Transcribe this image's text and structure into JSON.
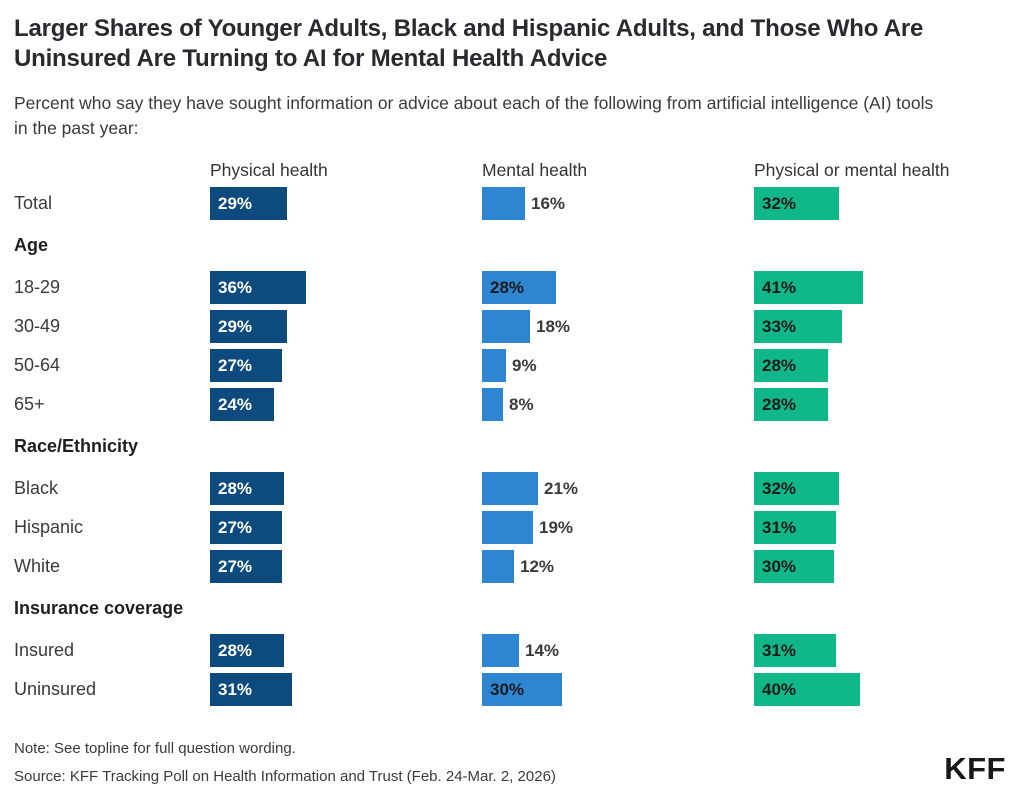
{
  "title": "Larger Shares of Younger Adults, Black and Hispanic Adults, and Those Who Are Uninsured Are Turning to AI for Mental Health Advice",
  "subtitle": "Percent who say they have sought information or advice about each of the following from artificial intelligence (AI) tools in the past year:",
  "columns": [
    "Physical health",
    "Mental health",
    "Physical or mental health"
  ],
  "colors": {
    "physical": "#0d4b7e",
    "mental": "#2e86d3",
    "combined": "#10b789",
    "label_on_dark": "#ffffff",
    "label_on_light": "#1a1a1a",
    "label_outside": "#3a3a3a"
  },
  "rows": [
    {
      "type": "bar",
      "label": "Total",
      "values": [
        29,
        16,
        32
      ]
    },
    {
      "type": "section",
      "label": "Age"
    },
    {
      "type": "bar",
      "label": "18-29",
      "values": [
        36,
        28,
        41
      ]
    },
    {
      "type": "bar",
      "label": "30-49",
      "values": [
        29,
        18,
        33
      ]
    },
    {
      "type": "bar",
      "label": "50-64",
      "values": [
        27,
        9,
        28
      ]
    },
    {
      "type": "bar",
      "label": "65+",
      "values": [
        24,
        8,
        28
      ]
    },
    {
      "type": "section",
      "label": "Race/Ethnicity"
    },
    {
      "type": "bar",
      "label": "Black",
      "values": [
        28,
        21,
        32
      ]
    },
    {
      "type": "bar",
      "label": "Hispanic",
      "values": [
        27,
        19,
        31
      ]
    },
    {
      "type": "bar",
      "label": "White",
      "values": [
        27,
        12,
        30
      ]
    },
    {
      "type": "section",
      "label": "Insurance coverage"
    },
    {
      "type": "bar",
      "label": "Insured",
      "values": [
        28,
        14,
        31
      ]
    },
    {
      "type": "bar",
      "label": "Uninsured",
      "values": [
        31,
        30,
        40
      ]
    }
  ],
  "note": "Note: See topline for full question wording.",
  "source": "Source: KFF Tracking Poll on Health Information and Trust (Feb. 24-Mar. 2, 2026)",
  "logo": "KFF",
  "chart_data": {
    "type": "bar",
    "orientation": "horizontal",
    "title": "Larger Shares of Younger Adults, Black and Hispanic Adults, and Those Who Are Uninsured Are Turning to AI for Mental Health Advice",
    "subtitle": "Percent who say they have sought information or advice about each of the following from artificial intelligence (AI) tools in the past year:",
    "unit": "%",
    "xlim": [
      0,
      100
    ],
    "grid": false,
    "legend_position": "column-headers-top",
    "category_groups": [
      {
        "group": null,
        "categories": [
          "Total"
        ]
      },
      {
        "group": "Age",
        "categories": [
          "18-29",
          "30-49",
          "50-64",
          "65+"
        ]
      },
      {
        "group": "Race/Ethnicity",
        "categories": [
          "Black",
          "Hispanic",
          "White"
        ]
      },
      {
        "group": "Insurance coverage",
        "categories": [
          "Insured",
          "Uninsured"
        ]
      }
    ],
    "categories": [
      "Total",
      "18-29",
      "30-49",
      "50-64",
      "65+",
      "Black",
      "Hispanic",
      "White",
      "Insured",
      "Uninsured"
    ],
    "series": [
      {
        "name": "Physical health",
        "color": "#0d4b7e",
        "values": [
          29,
          36,
          29,
          27,
          24,
          28,
          27,
          27,
          28,
          31
        ]
      },
      {
        "name": "Mental health",
        "color": "#2e86d3",
        "values": [
          16,
          28,
          18,
          9,
          8,
          21,
          19,
          12,
          14,
          30
        ]
      },
      {
        "name": "Physical or mental health",
        "color": "#10b789",
        "values": [
          32,
          41,
          33,
          28,
          28,
          32,
          31,
          30,
          31,
          40
        ]
      }
    ]
  }
}
